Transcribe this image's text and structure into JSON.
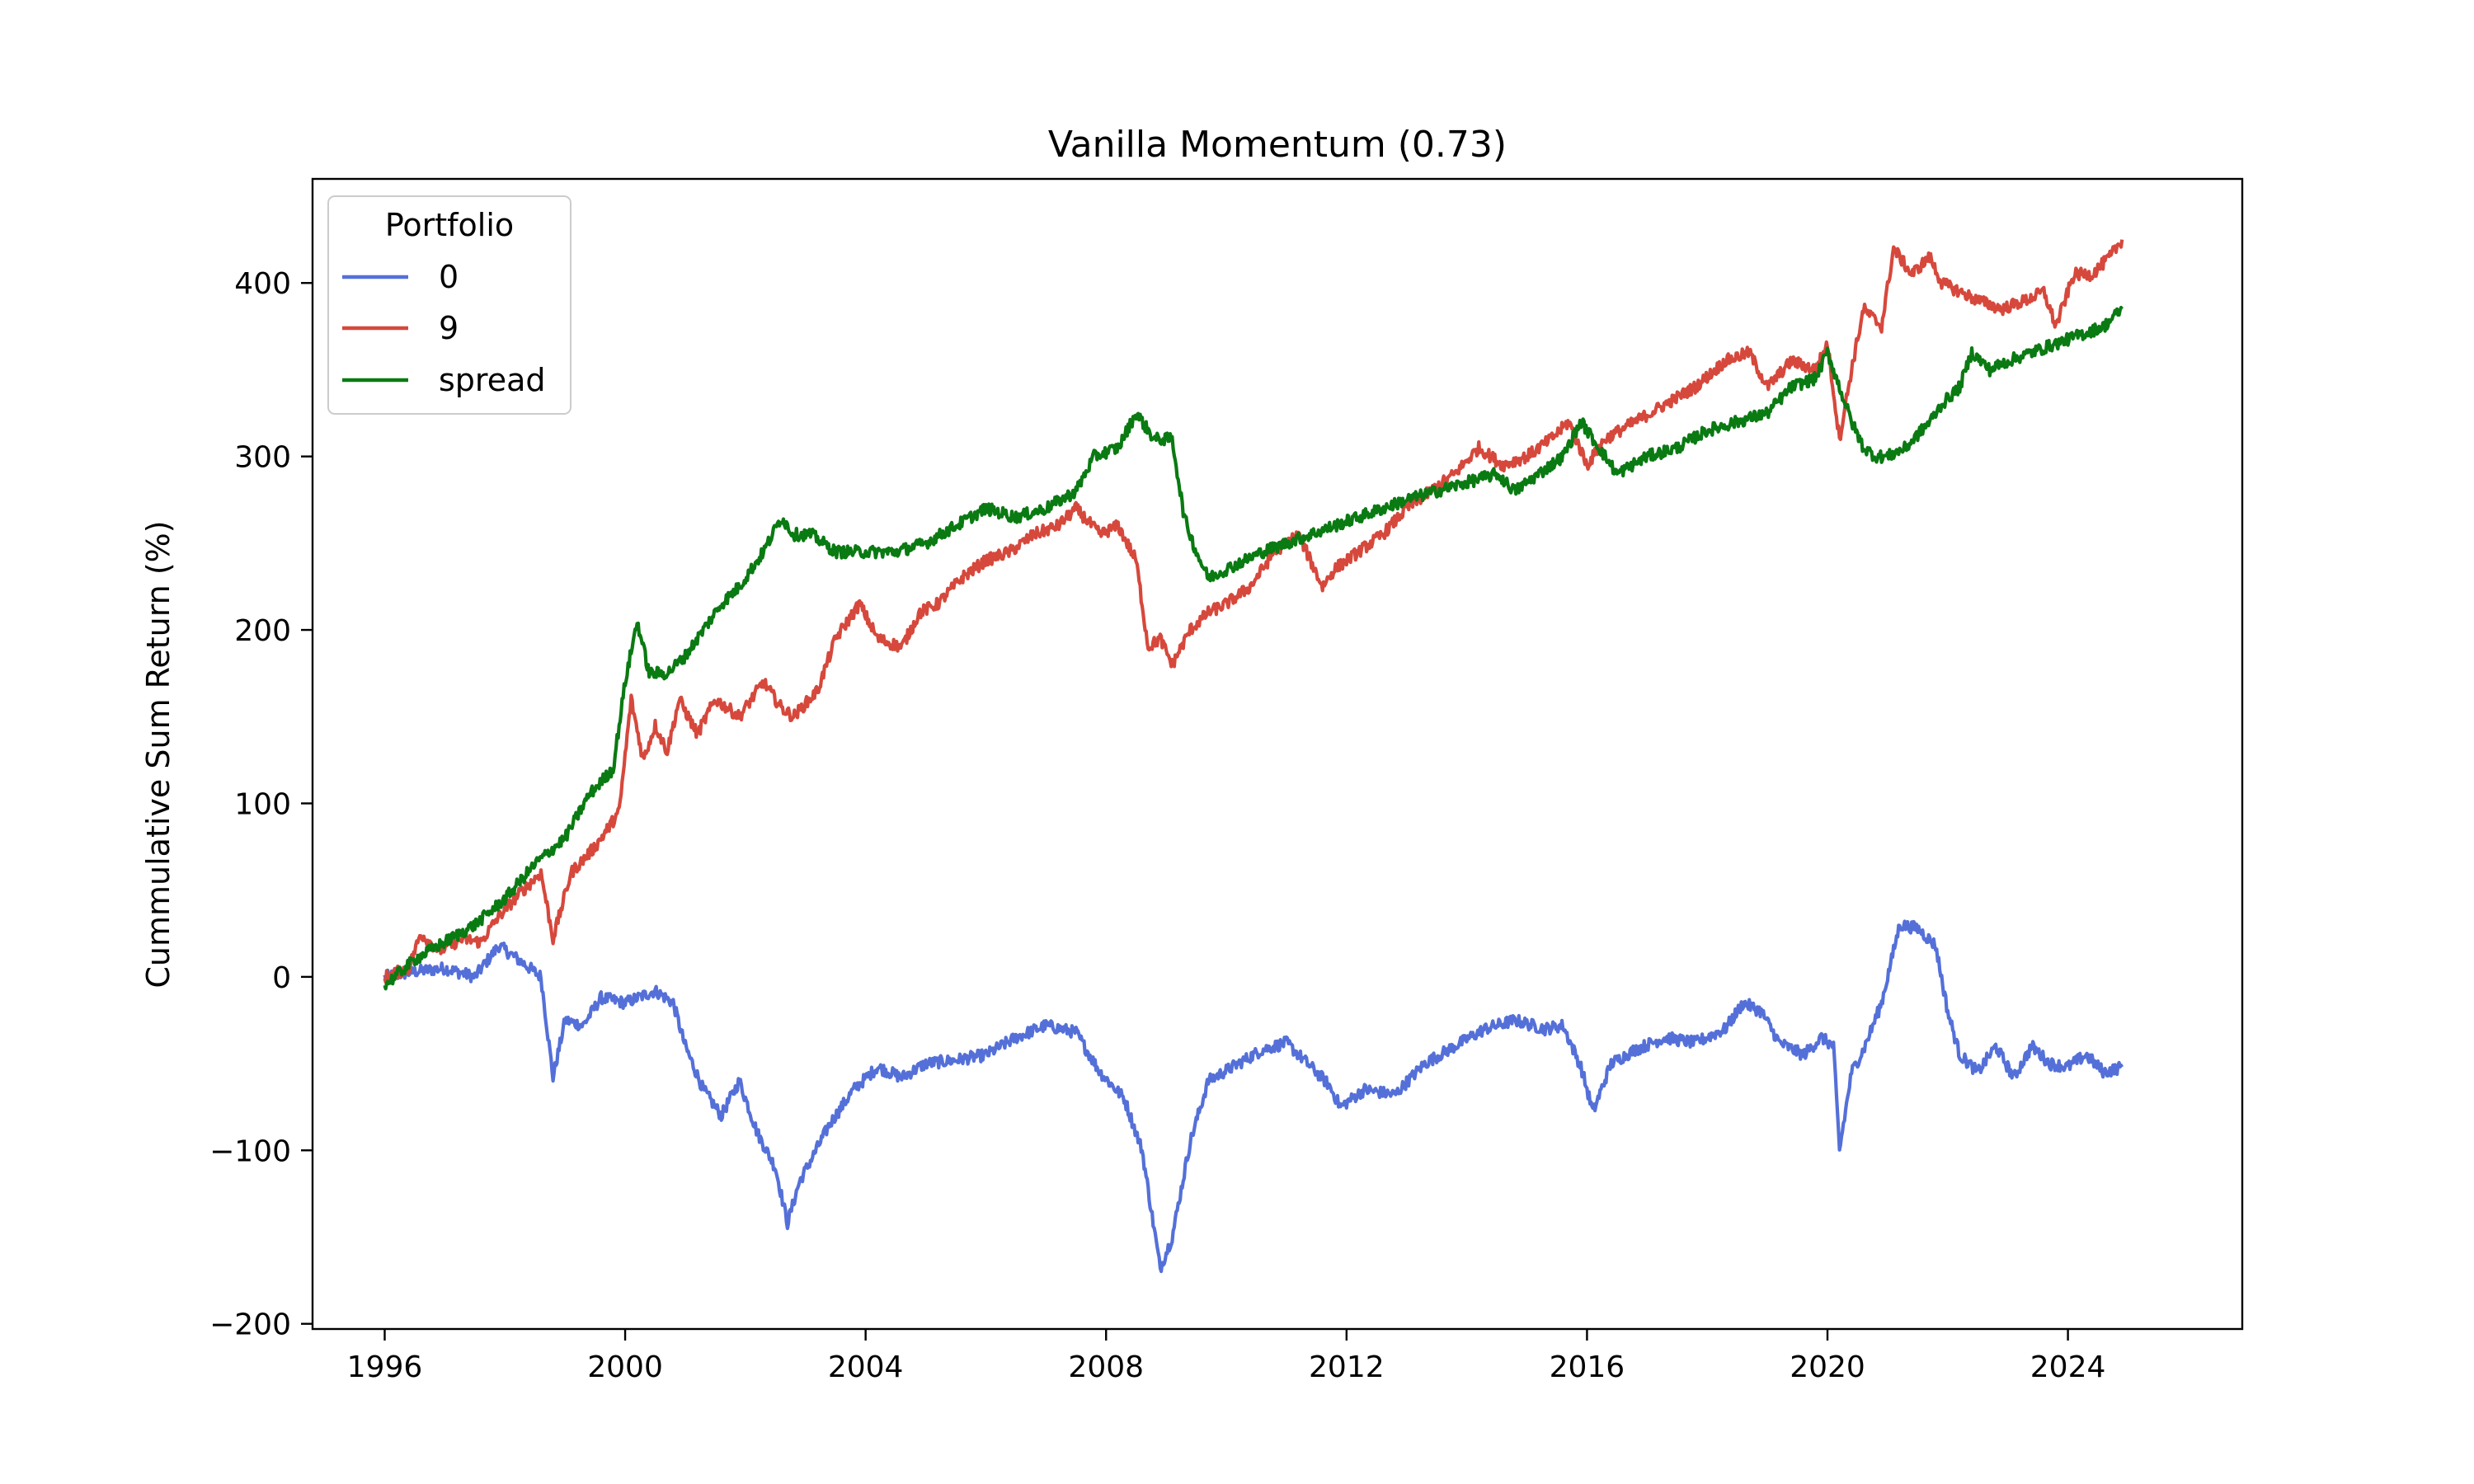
{
  "chart_data": {
    "type": "line",
    "title": "Vanilla Momentum (0.73)",
    "xlabel": "",
    "ylabel": "Cummulative Sum Return (%)",
    "xlim": [
      1994.8,
      2026.9
    ],
    "ylim": [
      -203,
      460
    ],
    "x_ticks": [
      1996,
      2000,
      2004,
      2008,
      2012,
      2016,
      2020,
      2024
    ],
    "x_tick_labels": [
      "1996",
      "2000",
      "2004",
      "2008",
      "2012",
      "2016",
      "2020",
      "2024"
    ],
    "y_ticks": [
      -200,
      -100,
      0,
      100,
      200,
      300,
      400
    ],
    "y_tick_labels": [
      "−200",
      "−100",
      "0",
      "100",
      "200",
      "300",
      "400"
    ],
    "grid": false,
    "legend": {
      "title": "Portfolio",
      "placement": "top-left"
    },
    "series": [
      {
        "name": "0",
        "color": "#5470d8",
        "x": [
          1996.0,
          1996.5,
          1997.0,
          1997.5,
          1997.9,
          1998.3,
          1998.6,
          1998.8,
          1999.0,
          1999.3,
          1999.6,
          2000.0,
          2000.5,
          2000.8,
          2001.0,
          2001.3,
          2001.6,
          2001.9,
          2002.2,
          2002.5,
          2002.7,
          2002.9,
          2003.1,
          2003.4,
          2003.8,
          2004.2,
          2004.6,
          2005.0,
          2005.5,
          2006.0,
          2006.5,
          2007.0,
          2007.5,
          2007.9,
          2008.3,
          2008.6,
          2008.9,
          2009.1,
          2009.4,
          2009.7,
          2010.2,
          2010.6,
          2011.0,
          2011.5,
          2011.7,
          2011.9,
          2012.3,
          2012.8,
          2013.3,
          2013.8,
          2014.3,
          2014.8,
          2015.3,
          2015.6,
          2015.9,
          2016.1,
          2016.4,
          2016.8,
          2017.3,
          2017.8,
          2018.3,
          2018.6,
          2018.9,
          2019.2,
          2019.6,
          2019.9,
          2020.1,
          2020.2,
          2020.4,
          2020.6,
          2020.9,
          2021.2,
          2021.5,
          2021.8,
          2022.0,
          2022.2,
          2022.5,
          2022.8,
          2023.1,
          2023.4,
          2023.7,
          2024.0,
          2024.3,
          2024.6,
          2024.9
        ],
        "y": [
          0,
          3,
          5,
          0,
          18,
          8,
          0,
          -58,
          -25,
          -28,
          -12,
          -15,
          -8,
          -15,
          -40,
          -65,
          -80,
          -60,
          -90,
          -110,
          -142,
          -118,
          -105,
          -85,
          -65,
          -52,
          -58,
          -50,
          -48,
          -45,
          -35,
          -28,
          -32,
          -55,
          -70,
          -100,
          -168,
          -150,
          -95,
          -60,
          -50,
          -42,
          -38,
          -55,
          -62,
          -75,
          -65,
          -68,
          -50,
          -40,
          -30,
          -25,
          -30,
          -28,
          -52,
          -78,
          -50,
          -42,
          -35,
          -38,
          -30,
          -15,
          -20,
          -38,
          -45,
          -35,
          -40,
          -100,
          -55,
          -42,
          -15,
          30,
          28,
          18,
          -20,
          -45,
          -55,
          -40,
          -58,
          -40,
          -50,
          -52,
          -45,
          -55,
          -52
        ]
      },
      {
        "name": "9",
        "color": "#d6483c",
        "x": [
          1996.0,
          1996.4,
          1996.6,
          1996.9,
          1997.3,
          1997.6,
          1997.9,
          1998.3,
          1998.6,
          1998.8,
          1999.1,
          1999.5,
          1999.9,
          2000.1,
          2000.3,
          2000.5,
          2000.7,
          2000.9,
          2001.2,
          2001.5,
          2001.9,
          2002.3,
          2002.6,
          2002.8,
          2003.2,
          2003.5,
          2003.9,
          2004.2,
          2004.6,
          2004.9,
          2005.2,
          2005.6,
          2006.0,
          2006.4,
          2006.8,
          2007.2,
          2007.5,
          2007.9,
          2008.2,
          2008.5,
          2008.7,
          2008.9,
          2009.1,
          2009.4,
          2009.7,
          2010.0,
          2010.4,
          2010.8,
          2011.2,
          2011.6,
          2011.8,
          2012.2,
          2012.6,
          2013.0,
          2013.4,
          2013.8,
          2014.2,
          2014.6,
          2015.0,
          2015.4,
          2015.7,
          2016.0,
          2016.3,
          2016.8,
          2017.3,
          2017.8,
          2018.3,
          2018.7,
          2019.0,
          2019.4,
          2019.8,
          2020.0,
          2020.2,
          2020.4,
          2020.6,
          2020.9,
          2021.1,
          2021.4,
          2021.7,
          2021.9,
          2022.2,
          2022.5,
          2022.9,
          2023.3,
          2023.6,
          2023.8,
          2024.1,
          2024.4,
          2024.7,
          2024.9
        ],
        "y": [
          0,
          5,
          25,
          15,
          22,
          20,
          35,
          50,
          60,
          22,
          60,
          75,
          95,
          160,
          125,
          145,
          130,
          160,
          140,
          160,
          150,
          170,
          155,
          150,
          165,
          195,
          215,
          195,
          190,
          210,
          215,
          230,
          240,
          245,
          255,
          260,
          270,
          255,
          260,
          240,
          190,
          195,
          180,
          200,
          210,
          215,
          225,
          245,
          255,
          225,
          235,
          245,
          255,
          270,
          280,
          290,
          305,
          295,
          300,
          310,
          320,
          295,
          310,
          320,
          330,
          340,
          355,
          360,
          340,
          355,
          350,
          365,
          310,
          350,
          385,
          375,
          420,
          405,
          415,
          400,
          395,
          390,
          385,
          390,
          395,
          375,
          405,
          405,
          415,
          425
        ]
      },
      {
        "name": "spread",
        "color": "#0a7a12",
        "x": [
          1996.0,
          1996.5,
          1997.0,
          1997.5,
          1998.0,
          1998.5,
          1999.0,
          1999.4,
          1999.8,
          2000.0,
          2000.2,
          2000.4,
          2000.7,
          2001.0,
          2001.3,
          2001.6,
          2001.9,
          2002.3,
          2002.6,
          2002.8,
          2003.1,
          2003.5,
          2004.0,
          2004.5,
          2005.0,
          2005.5,
          2006.0,
          2006.5,
          2007.0,
          2007.5,
          2007.8,
          2008.2,
          2008.5,
          2008.8,
          2009.1,
          2009.3,
          2009.5,
          2009.7,
          2010.0,
          2010.3,
          2010.6,
          2011.0,
          2011.4,
          2011.8,
          2012.2,
          2012.6,
          2013.0,
          2013.5,
          2014.0,
          2014.5,
          2014.8,
          2015.2,
          2015.6,
          2015.9,
          2016.1,
          2016.5,
          2017.0,
          2017.5,
          2018.0,
          2018.5,
          2019.0,
          2019.4,
          2019.8,
          2020.0,
          2020.2,
          2020.4,
          2020.6,
          2020.8,
          2021.0,
          2021.3,
          2021.7,
          2021.9,
          2022.2,
          2022.4,
          2022.7,
          2023.0,
          2023.4,
          2023.8,
          2024.2,
          2024.6,
          2024.9
        ],
        "y": [
          -5,
          10,
          20,
          30,
          45,
          65,
          80,
          105,
          120,
          170,
          205,
          175,
          175,
          185,
          200,
          215,
          225,
          245,
          265,
          255,
          255,
          245,
          245,
          245,
          250,
          260,
          270,
          265,
          270,
          280,
          300,
          305,
          325,
          310,
          310,
          265,
          245,
          230,
          235,
          240,
          245,
          250,
          255,
          260,
          265,
          270,
          275,
          280,
          285,
          290,
          280,
          290,
          300,
          320,
          310,
          290,
          300,
          305,
          315,
          320,
          325,
          340,
          345,
          360,
          340,
          320,
          305,
          300,
          300,
          305,
          320,
          330,
          340,
          360,
          350,
          355,
          360,
          365,
          370,
          375,
          385
        ]
      }
    ]
  }
}
